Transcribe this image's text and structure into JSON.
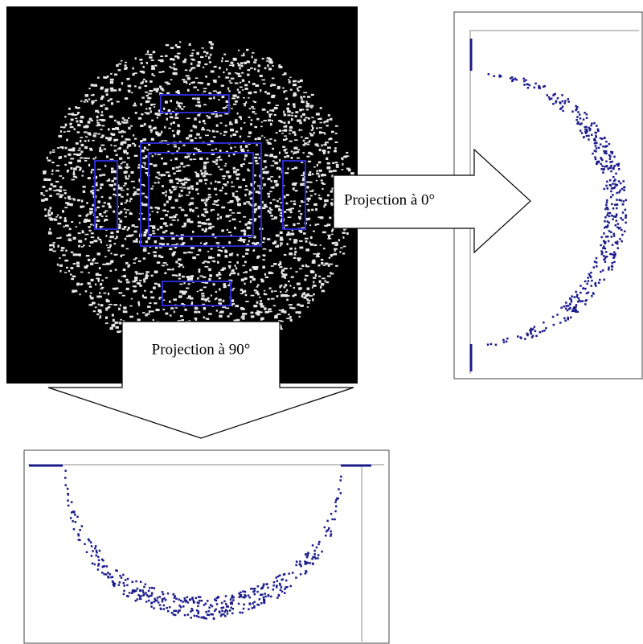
{
  "labels": {
    "projection_0": "Projection à 0°",
    "projection_90": "Projection à 90°"
  }
}
